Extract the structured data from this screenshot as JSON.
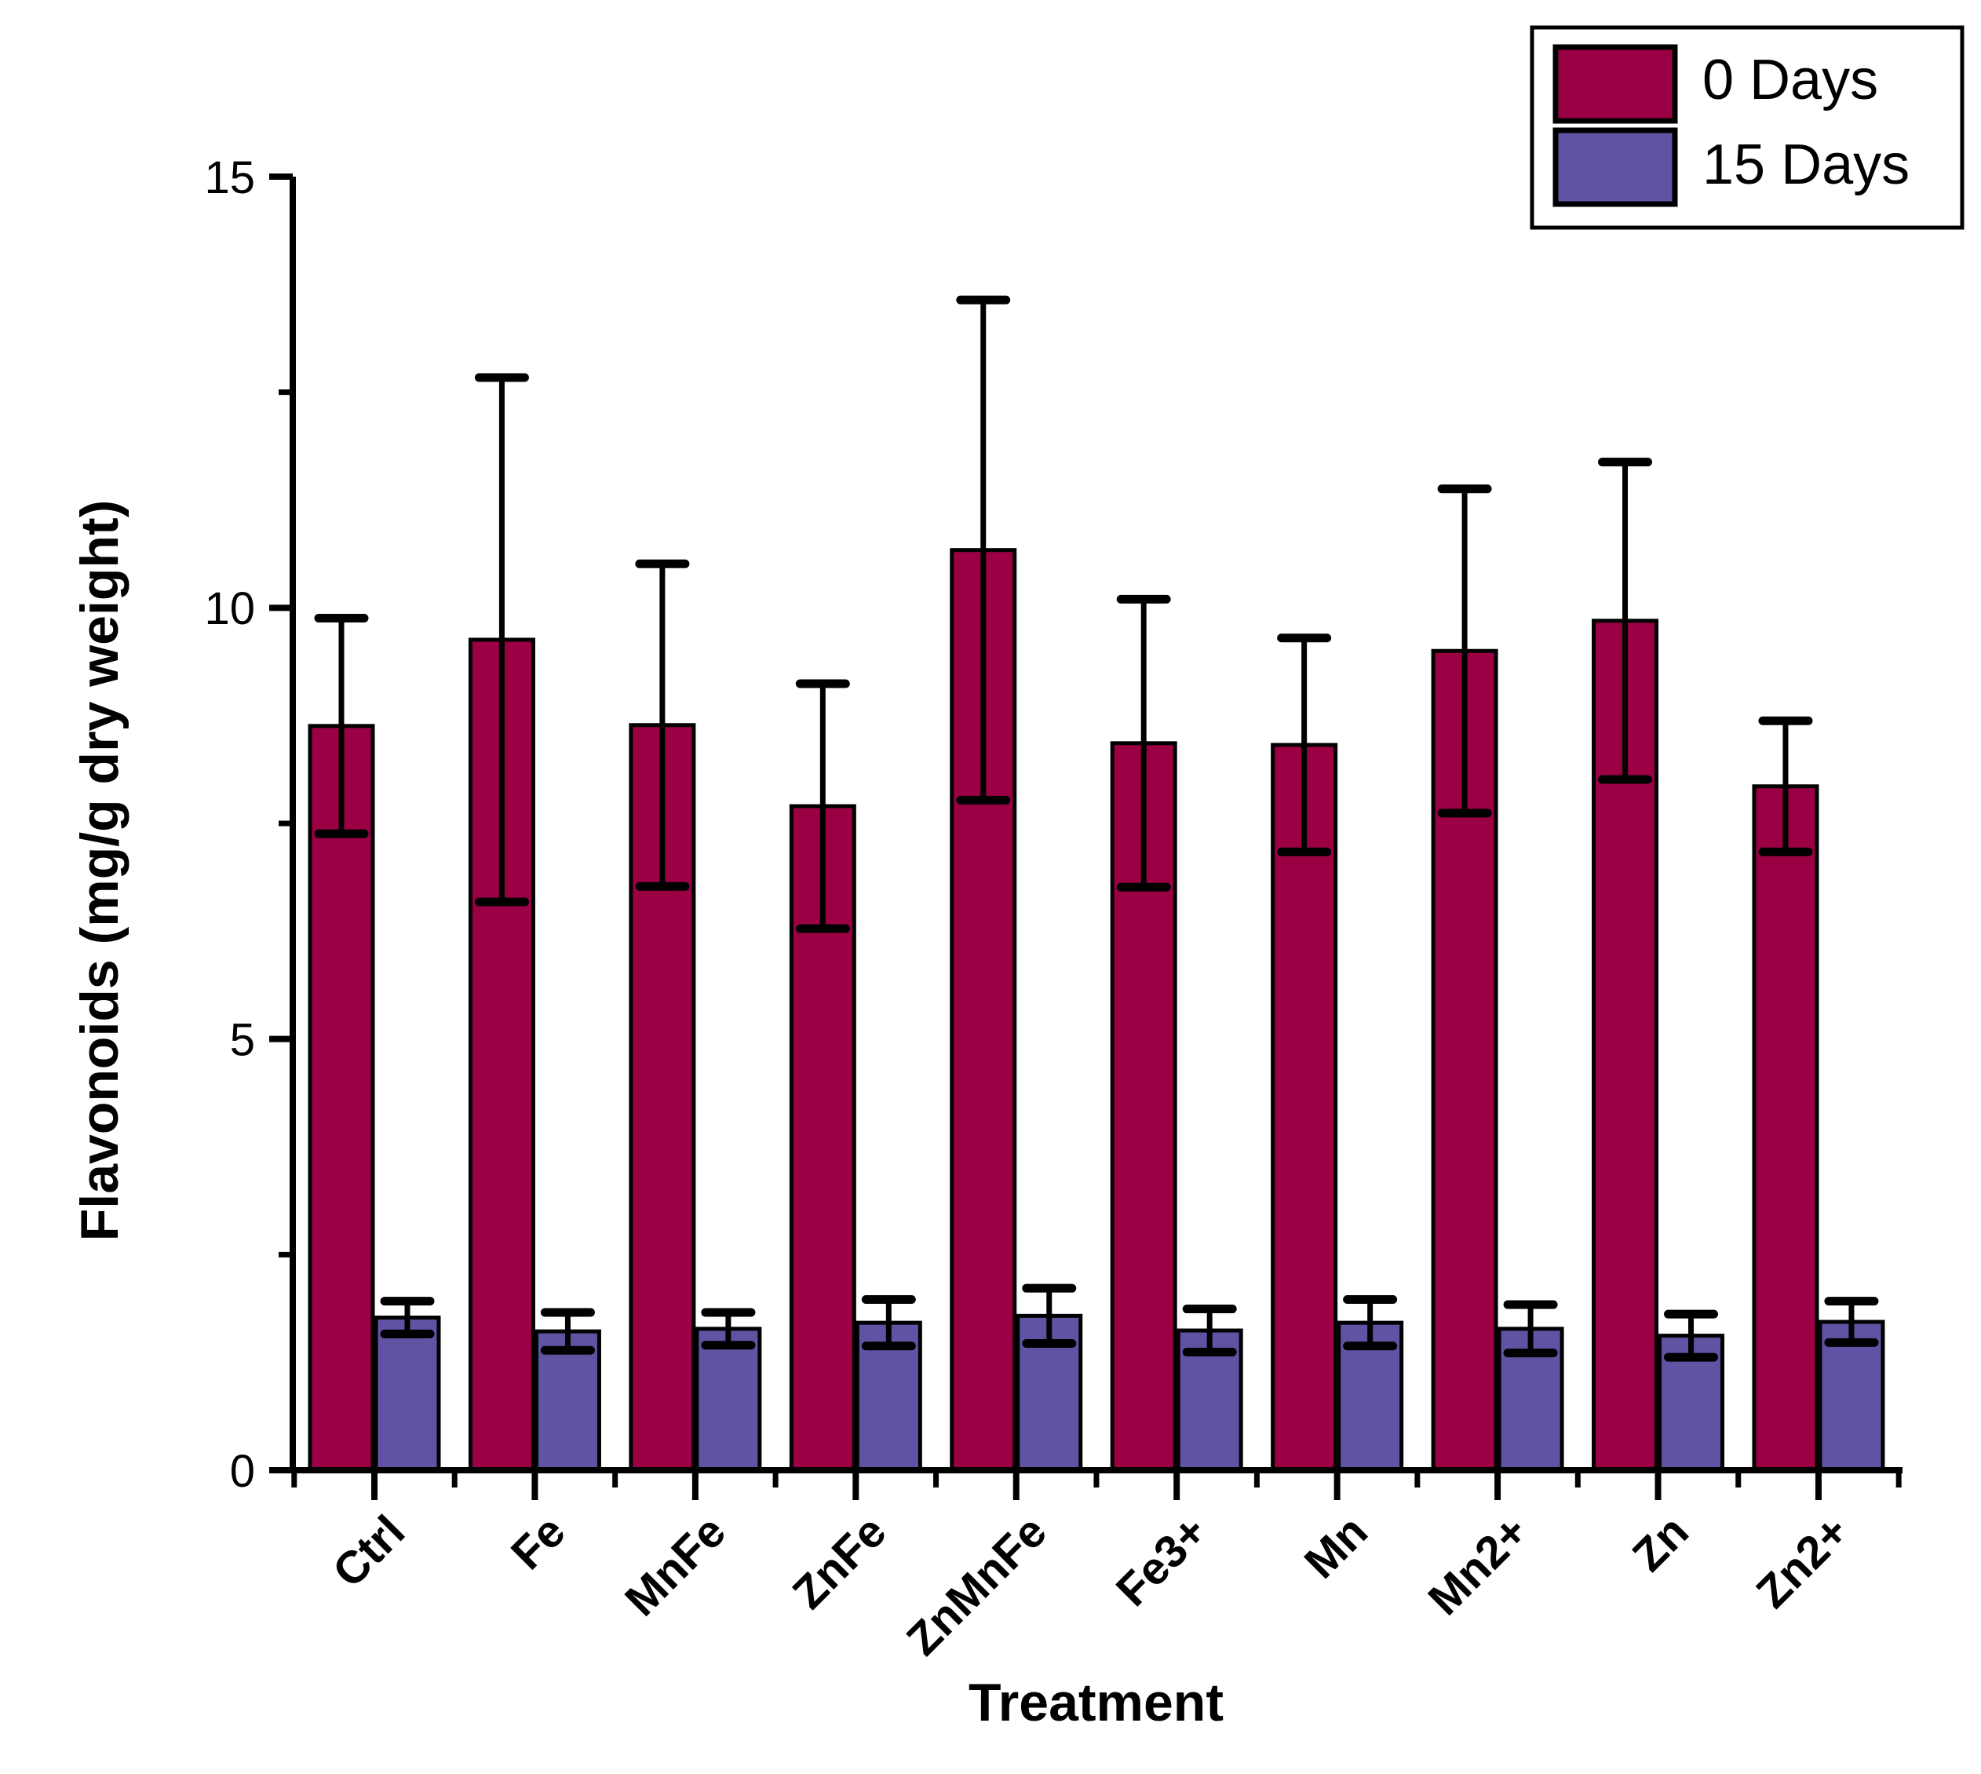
{
  "page": {
    "background": "#FFFFFF",
    "ink_color": "#000000"
  },
  "chart_data": {
    "type": "bar",
    "title": "",
    "xlabel": "Treatment",
    "ylabel": "Flavonoids (mg/g dry weight)",
    "ylim": [
      0,
      15
    ],
    "yticks": [
      0,
      5,
      10,
      15
    ],
    "ytick_minor_step": 2.5,
    "grid": false,
    "legend_position": "top-right",
    "error_bars": true,
    "categories": [
      "Ctrl",
      "Fe",
      "MnFe",
      "ZnFe",
      "ZnMnFe",
      "Fe3+",
      "Mn",
      "Mn2+",
      "Zn",
      "Zn2+"
    ],
    "series": [
      {
        "name": "0 Days",
        "color": "#9B0045",
        "values": [
          8.63,
          9.63,
          8.64,
          7.7,
          10.67,
          8.43,
          8.41,
          9.5,
          9.85,
          7.93
        ],
        "errors": [
          1.25,
          3.04,
          1.87,
          1.42,
          2.9,
          1.67,
          1.24,
          1.88,
          1.84,
          0.76
        ]
      },
      {
        "name": "15 Days",
        "color": "#6153A3",
        "values": [
          1.77,
          1.61,
          1.64,
          1.71,
          1.79,
          1.62,
          1.71,
          1.64,
          1.56,
          1.72
        ],
        "errors": [
          0.19,
          0.22,
          0.19,
          0.27,
          0.32,
          0.25,
          0.27,
          0.28,
          0.25,
          0.24
        ]
      }
    ],
    "legend": [
      "0 Days",
      "15 Days"
    ]
  }
}
